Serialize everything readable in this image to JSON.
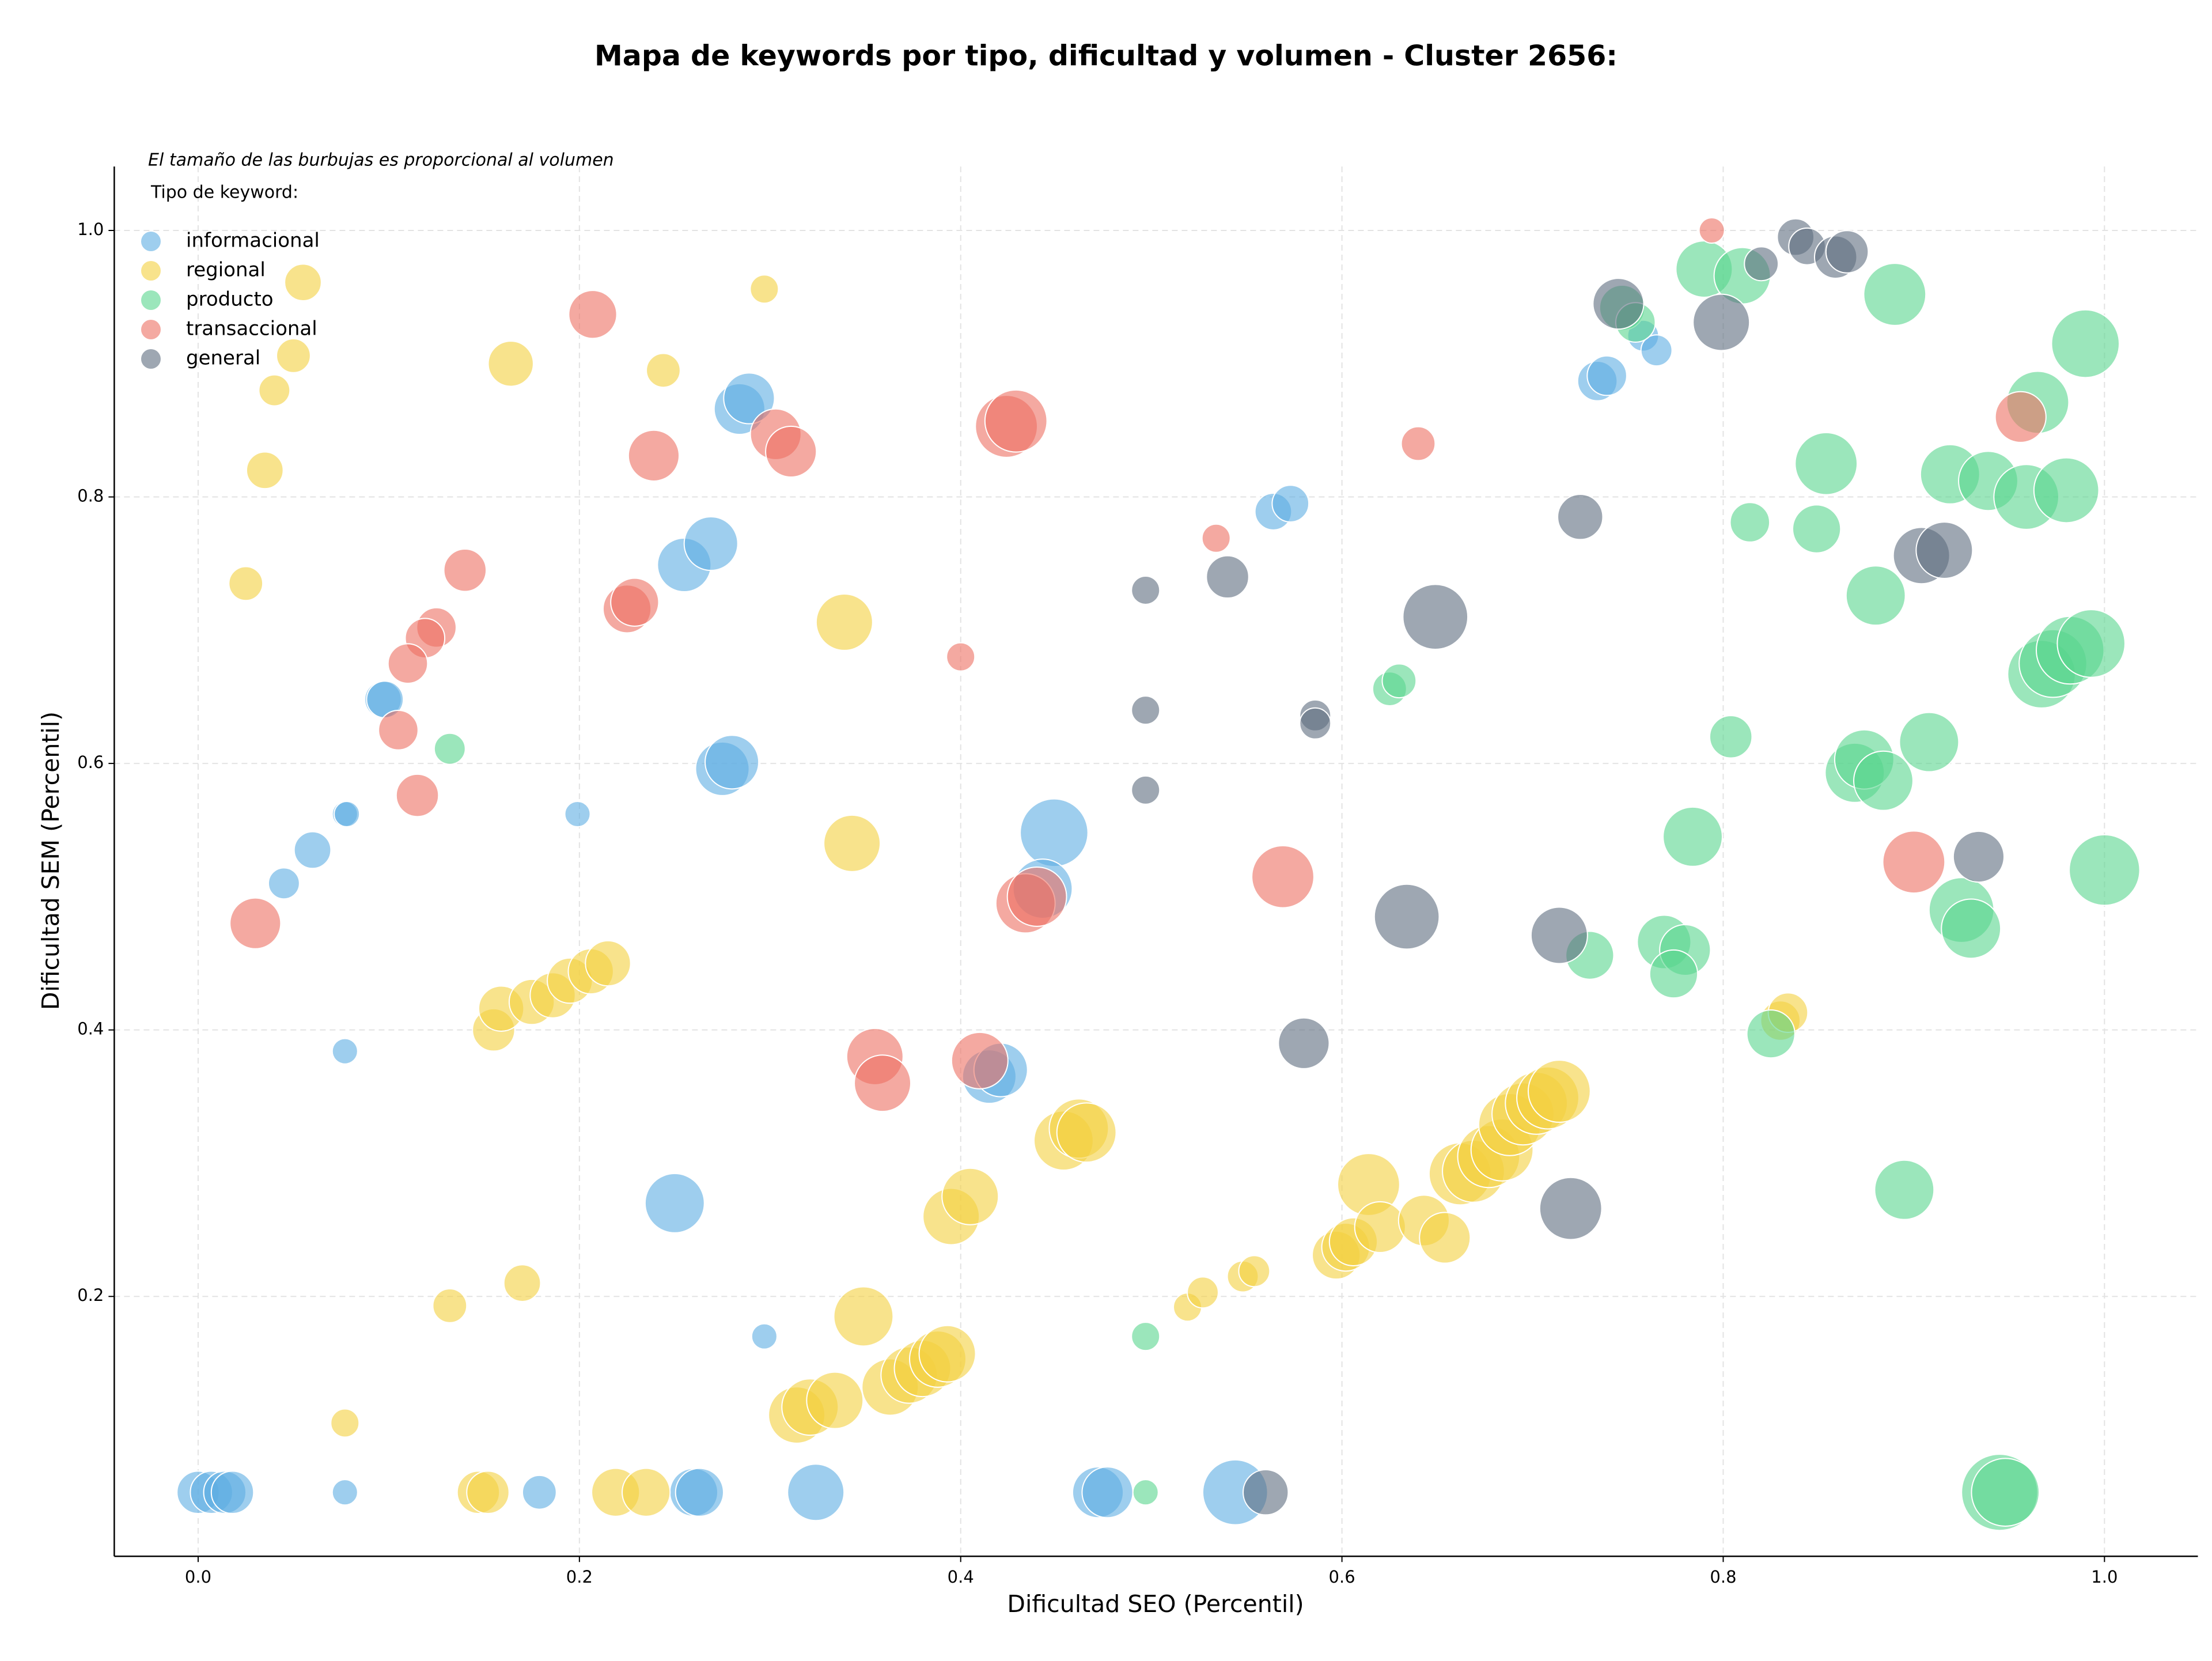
{
  "chart_data": {
    "type": "scatter",
    "title": "Mapa de keywords por tipo, dificultad y volumen - Cluster 2656:",
    "annotation": "El tamaño de las burbujas es proporcional al volumen",
    "legend_title": "Tipo de keyword:",
    "legend": "upper left",
    "grid": true,
    "x_label": "Dificultad SEO (Percentil)",
    "y_label": "Dificultad SEM (Percentil)",
    "xlim": [
      -0.044,
      1.049
    ],
    "ylim": [
      0.005,
      1.048
    ],
    "xticks": [
      {
        "value": 0,
        "label": "0.0"
      },
      0.2,
      0.4,
      0.6,
      0.8,
      {
        "value": 1,
        "label": "1.0"
      }
    ],
    "yticks": [
      0.2,
      0.4,
      0.6,
      0.8,
      {
        "value": 1,
        "label": "1.0"
      }
    ],
    "series": [
      {
        "name": "informacional",
        "color": "#5dade2",
        "x": [
          0.0,
          0.007,
          0.014,
          0.018,
          0.077,
          0.179,
          0.26,
          0.263,
          0.324,
          0.472,
          0.477,
          0.544,
          0.297,
          0.25,
          0.077,
          0.045,
          0.06,
          0.077,
          0.078,
          0.199,
          0.097,
          0.098,
          0.275,
          0.28,
          0.255,
          0.269,
          0.284,
          0.289,
          0.449,
          0.443,
          0.415,
          0.421,
          0.564,
          0.573,
          0.734,
          0.739,
          0.758,
          0.765
        ],
        "y": [
          0.053,
          0.053,
          0.053,
          0.053,
          0.053,
          0.053,
          0.053,
          0.053,
          0.053,
          0.053,
          0.053,
          0.053,
          0.17,
          0.27,
          0.384,
          0.51,
          0.535,
          0.562,
          0.562,
          0.562,
          0.648,
          0.648,
          0.596,
          0.601,
          0.749,
          0.765,
          0.866,
          0.874,
          0.548,
          0.506,
          0.365,
          0.37,
          0.789,
          0.795,
          0.887,
          0.891,
          0.921,
          0.91
        ],
        "sizes": [
          225,
          225,
          225,
          225,
          81,
          144,
          289,
          289,
          400,
          324,
          324,
          529,
          81,
          441,
          81,
          121,
          169,
          81,
          81,
          81,
          169,
          169,
          361,
          361,
          361,
          361,
          324,
          324,
          576,
          441,
          361,
          361,
          169,
          169,
          196,
          196,
          121,
          121
        ]
      },
      {
        "name": "regional",
        "color": "#f4d03f",
        "x": [
          0.055,
          0.05,
          0.04,
          0.035,
          0.025,
          0.297,
          0.164,
          0.244,
          0.339,
          0.343,
          0.155,
          0.159,
          0.175,
          0.186,
          0.195,
          0.206,
          0.215,
          0.17,
          0.132,
          0.077,
          0.147,
          0.152,
          0.219,
          0.235,
          0.349,
          0.314,
          0.321,
          0.334,
          0.363,
          0.373,
          0.38,
          0.388,
          0.393,
          0.395,
          0.405,
          0.454,
          0.462,
          0.466,
          0.519,
          0.527,
          0.548,
          0.554,
          0.597,
          0.602,
          0.606,
          0.614,
          0.62,
          0.643,
          0.654,
          0.662,
          0.669,
          0.677,
          0.684,
          0.688,
          0.695,
          0.702,
          0.708,
          0.714,
          0.83,
          0.834
        ],
        "y": [
          0.961,
          0.906,
          0.88,
          0.82,
          0.735,
          0.956,
          0.9,
          0.895,
          0.706,
          0.54,
          0.4,
          0.416,
          0.421,
          0.426,
          0.437,
          0.444,
          0.45,
          0.21,
          0.193,
          0.105,
          0.053,
          0.053,
          0.053,
          0.053,
          0.185,
          0.111,
          0.117,
          0.122,
          0.132,
          0.141,
          0.146,
          0.153,
          0.157,
          0.26,
          0.275,
          0.317,
          0.326,
          0.323,
          0.192,
          0.203,
          0.215,
          0.219,
          0.231,
          0.237,
          0.241,
          0.284,
          0.252,
          0.257,
          0.244,
          0.292,
          0.294,
          0.305,
          0.31,
          0.329,
          0.337,
          0.345,
          0.349,
          0.354,
          0.407,
          0.413
        ],
        "sizes": [
          169,
          144,
          121,
          169,
          144,
          100,
          256,
          144,
          400,
          400,
          225,
          256,
          256,
          256,
          256,
          256,
          256,
          169,
          144,
          100,
          225,
          225,
          289,
          289,
          441,
          400,
          400,
          400,
          400,
          400,
          400,
          400,
          400,
          400,
          400,
          441,
          441,
          441,
          100,
          121,
          121,
          121,
          289,
          289,
          289,
          484,
          324,
          324,
          324,
          484,
          484,
          484,
          484,
          484,
          484,
          484,
          484,
          484,
          196,
          196
        ]
      },
      {
        "name": "producto",
        "color": "#58d68d",
        "x": [
          0.132,
          0.497,
          0.497,
          0.625,
          0.63,
          0.73,
          0.769,
          0.78,
          0.774,
          0.784,
          0.804,
          0.814,
          0.825,
          0.849,
          0.854,
          0.88,
          0.869,
          0.874,
          0.884,
          0.89,
          0.895,
          0.908,
          0.919,
          0.925,
          0.93,
          0.939,
          0.945,
          0.948,
          0.959,
          0.965,
          0.967,
          0.973,
          0.982,
          0.993,
          0.98,
          0.99,
          1.0,
          0.79,
          0.81,
          0.747,
          0.754
        ],
        "y": [
          0.611,
          0.17,
          0.053,
          0.656,
          0.662,
          0.456,
          0.466,
          0.46,
          0.442,
          0.545,
          0.62,
          0.781,
          0.397,
          0.776,
          0.825,
          0.726,
          0.593,
          0.603,
          0.587,
          0.952,
          0.28,
          0.616,
          0.817,
          0.49,
          0.476,
          0.812,
          0.053,
          0.053,
          0.8,
          0.871,
          0.667,
          0.675,
          0.685,
          0.69,
          0.805,
          0.915,
          0.52,
          0.971,
          0.966,
          0.942,
          0.931
        ],
        "sizes": [
          121,
          100,
          81,
          144,
          144,
          289,
          361,
          324,
          289,
          441,
          225,
          196,
          289,
          289,
          484,
          441,
          441,
          441,
          441,
          484,
          441,
          441,
          441,
          529,
          441,
          441,
          729,
          576,
          529,
          484,
          576,
          576,
          576,
          576,
          529,
          576,
          625,
          400,
          400,
          256,
          196
        ]
      },
      {
        "name": "transaccional",
        "color": "#ec7063",
        "x": [
          0.794,
          0.207,
          0.239,
          0.303,
          0.311,
          0.424,
          0.429,
          0.14,
          0.125,
          0.119,
          0.11,
          0.105,
          0.115,
          0.03,
          0.225,
          0.229,
          0.4,
          0.534,
          0.64,
          0.569,
          0.434,
          0.44,
          0.355,
          0.359,
          0.41,
          0.9,
          0.956
        ],
        "y": [
          1.0,
          0.937,
          0.831,
          0.847,
          0.834,
          0.853,
          0.857,
          0.745,
          0.702,
          0.694,
          0.675,
          0.625,
          0.576,
          0.48,
          0.716,
          0.721,
          0.68,
          0.769,
          0.84,
          0.515,
          0.495,
          0.5,
          0.38,
          0.36,
          0.377,
          0.526,
          0.86
        ],
        "sizes": [
          81,
          289,
          324,
          324,
          324,
          484,
          484,
          225,
          196,
          196,
          196,
          196,
          225,
          324,
          289,
          289,
          100,
          100,
          144,
          484,
          441,
          441,
          400,
          400,
          400,
          484,
          324
        ]
      },
      {
        "name": "general",
        "color": "#5d6d7e",
        "x": [
          0.497,
          0.497,
          0.497,
          0.54,
          0.586,
          0.586,
          0.649,
          0.634,
          0.58,
          0.56,
          0.72,
          0.714,
          0.725,
          0.745,
          0.799,
          0.82,
          0.838,
          0.844,
          0.859,
          0.865,
          0.904,
          0.916,
          0.934
        ],
        "y": [
          0.73,
          0.64,
          0.58,
          0.74,
          0.636,
          0.63,
          0.71,
          0.485,
          0.39,
          0.053,
          0.266,
          0.471,
          0.785,
          0.945,
          0.931,
          0.975,
          0.995,
          0.988,
          0.98,
          0.984,
          0.756,
          0.76,
          0.53
        ],
        "sizes": [
          100,
          100,
          100,
          225,
          121,
          121,
          529,
          529,
          324,
          256,
          484,
          400,
          256,
          324,
          400,
          144,
          169,
          169,
          225,
          225,
          400,
          400,
          324
        ]
      }
    ]
  }
}
